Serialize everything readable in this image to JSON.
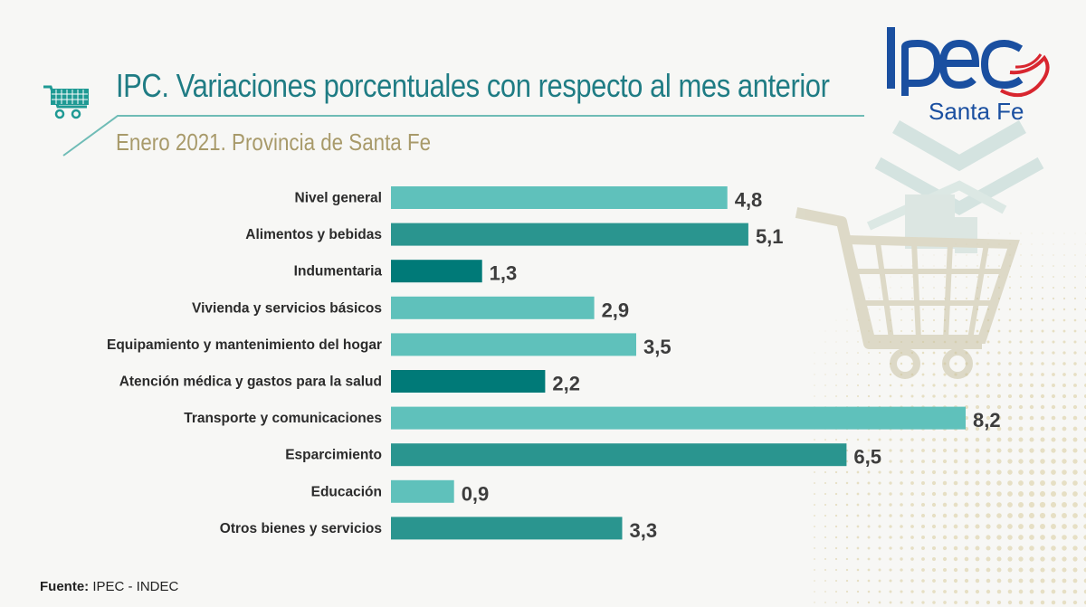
{
  "header": {
    "title": "IPC. Variaciones porcentuales con respecto al mes anterior",
    "subtitle": "Enero 2021. Provincia de Santa Fe"
  },
  "brand": {
    "logo_text": "Ipec",
    "region": "Santa Fe"
  },
  "footer": {
    "source_label": "Fuente:",
    "source_value": "IPEC - INDEC"
  },
  "icons": {
    "header_icon": "shopping-cart-icon",
    "background_decoration": "shopping-cart-with-products-icon"
  },
  "colors": {
    "title": "#1f7c84",
    "subtitle": "#a89a6a",
    "bar_light": "#5fc1bb",
    "bar_medium": "#2a958f",
    "bar_dark": "#007a78",
    "logo_blue": "#1a4fa0",
    "logo_red": "#d8262f"
  },
  "chart_data": {
    "type": "bar",
    "orientation": "horizontal",
    "categories": [
      "Nivel general",
      "Alimentos y bebidas",
      "Indumentaria",
      "Vivienda y servicios básicos",
      "Equipamiento y mantenimiento del hogar",
      "Atención médica y gastos para la salud",
      "Transporte y comunicaciones",
      "Esparcimiento",
      "Educación",
      "Otros bienes y servicios"
    ],
    "values": [
      4.8,
      5.1,
      1.3,
      2.9,
      3.5,
      2.2,
      8.2,
      6.5,
      0.9,
      3.3
    ],
    "value_labels": [
      "4,8",
      "5,1",
      "1,3",
      "2,9",
      "3,5",
      "2,2",
      "8,2",
      "6,5",
      "0,9",
      "3,3"
    ],
    "bar_colors": [
      "#5fc1bb",
      "#2a958f",
      "#007a78",
      "#5fc1bb",
      "#5fc1bb",
      "#007a78",
      "#5fc1bb",
      "#2a958f",
      "#5fc1bb",
      "#2a958f"
    ],
    "xlim": [
      0,
      8.2
    ],
    "grid": false,
    "legend": "none"
  }
}
